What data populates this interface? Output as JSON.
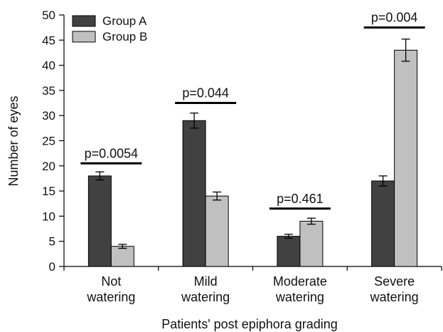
{
  "chart_data": {
    "type": "bar",
    "title": "",
    "xlabel": "Patients' post epiphora grading",
    "ylabel": "Number of eyes",
    "ylim": [
      0,
      50
    ],
    "yticks": [
      0,
      5,
      10,
      15,
      20,
      25,
      30,
      35,
      40,
      45,
      50
    ],
    "categories": [
      [
        "Not",
        "watering"
      ],
      [
        "Mild",
        "watering"
      ],
      [
        "Moderate",
        "watering"
      ],
      [
        "Severe",
        "watering"
      ]
    ],
    "series": [
      {
        "name": "Group A",
        "values": [
          18,
          29,
          6,
          17
        ],
        "errors": [
          0.8,
          1.5,
          0.4,
          1.0
        ],
        "color": "#414141"
      },
      {
        "name": "Group B",
        "values": [
          4,
          14,
          9,
          43
        ],
        "errors": [
          0.4,
          0.8,
          0.6,
          2.2
        ],
        "color": "#c0c0c0"
      }
    ],
    "annotations": [
      {
        "category": 0,
        "label": "p=0.0054",
        "y": 20.5
      },
      {
        "category": 1,
        "label": "p=0.044",
        "y": 32.5
      },
      {
        "category": 2,
        "label": "p=0.461",
        "y": 11.5
      },
      {
        "category": 3,
        "label": "p=0.004",
        "y": 47.5
      }
    ],
    "legend": {
      "position": "top-left"
    },
    "grid": false
  }
}
